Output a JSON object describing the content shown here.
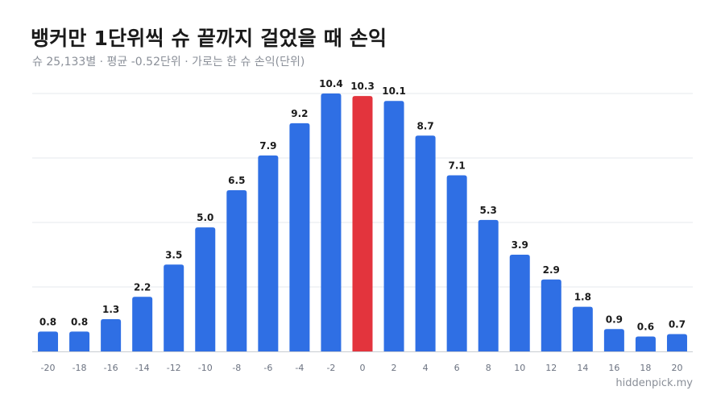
{
  "header": {
    "title": "뱅커만 1단위씩 슈 끝까지 걸었을 때 손익",
    "subtitle": "슈 25,133별 · 평균 -0.52단위 · 가로는 한 슈 손익(단위)"
  },
  "footer": {
    "watermark": "hiddenpick.my"
  },
  "colors": {
    "bar": "#2f6fe4",
    "highlight": "#e3343d",
    "grid": "#e6e8ec",
    "axis": "#c8ccd2",
    "tick_text": "#6b7280",
    "value_text": "#1a1a1a"
  },
  "chart_data": {
    "type": "bar",
    "title": "뱅커만 1단위씩 슈 끝까지 걸었을 때 손익",
    "subtitle": "슈 25,133별 · 평균 -0.52단위 · 가로는 한 슈 손익(단위)",
    "categories": [
      "-20",
      "-18",
      "-16",
      "-14",
      "-12",
      "-10",
      "-8",
      "-6",
      "-4",
      "-2",
      "0",
      "2",
      "4",
      "6",
      "8",
      "10",
      "12",
      "14",
      "16",
      "18",
      "20"
    ],
    "values": [
      0.8,
      0.8,
      1.3,
      2.2,
      3.5,
      5.0,
      6.5,
      7.9,
      9.2,
      10.4,
      10.3,
      10.1,
      8.7,
      7.1,
      5.3,
      3.9,
      2.9,
      1.8,
      0.9,
      0.6,
      0.7
    ],
    "highlight_category": "0",
    "ylim": [
      0,
      10.4
    ],
    "grid": true,
    "data_labels": true,
    "xlabel": "",
    "ylabel": ""
  }
}
